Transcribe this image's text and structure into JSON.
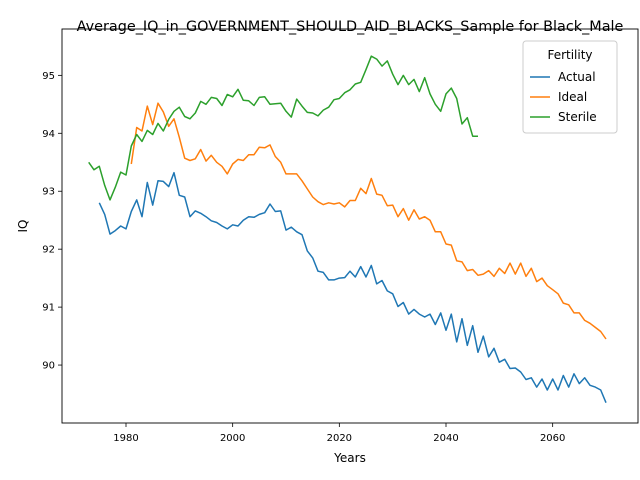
{
  "chart_data": {
    "type": "line",
    "title": "Average_IQ_in_GOVERNMENT_SHOULD_AID_BLACKS_Sample for Black_Male",
    "xlabel": "Years",
    "ylabel": "IQ",
    "xlim": [
      1968,
      2076
    ],
    "ylim": [
      89.0,
      95.8
    ],
    "x_ticks": [
      1980,
      2000,
      2020,
      2040,
      2060
    ],
    "y_ticks": [
      90,
      91,
      92,
      93,
      94,
      95
    ],
    "grid": false,
    "legend": {
      "title": "Fertility",
      "placement": "top-right"
    },
    "series": [
      {
        "name": "Actual",
        "color": "#1f77b4",
        "x": [
          1975,
          1976,
          1977,
          1978,
          1979,
          1980,
          1981,
          1982,
          1983,
          1984,
          1985,
          1986,
          1987,
          1988,
          1989,
          1990,
          1991,
          1992,
          1993,
          1994,
          1995,
          1996,
          1997,
          1998,
          1999,
          2000,
          2001,
          2002,
          2003,
          2004,
          2005,
          2006,
          2007,
          2008,
          2009,
          2010,
          2011,
          2012,
          2013,
          2014,
          2015,
          2016,
          2017,
          2018,
          2019,
          2020,
          2021,
          2022,
          2023,
          2024,
          2025,
          2026,
          2027,
          2028,
          2029,
          2030,
          2031,
          2032,
          2033,
          2034,
          2035,
          2036,
          2037,
          2038,
          2039,
          2040,
          2041,
          2042,
          2043,
          2044,
          2045,
          2046,
          2047,
          2048,
          2049,
          2050,
          2051,
          2052,
          2053,
          2054,
          2055,
          2056,
          2057,
          2058,
          2059,
          2060,
          2061,
          2062,
          2063,
          2064,
          2065,
          2066,
          2067,
          2068,
          2069,
          2070
        ],
        "values": [
          92.8,
          92.6,
          92.26,
          92.32,
          92.4,
          92.35,
          92.65,
          92.85,
          92.56,
          93.15,
          92.76,
          93.18,
          93.17,
          93.08,
          93.32,
          92.93,
          92.9,
          92.56,
          92.66,
          92.62,
          92.56,
          92.49,
          92.46,
          92.4,
          92.35,
          92.42,
          92.4,
          92.5,
          92.56,
          92.55,
          92.6,
          92.63,
          92.78,
          92.65,
          92.66,
          92.33,
          92.38,
          92.3,
          92.25,
          91.97,
          91.85,
          91.62,
          91.6,
          91.47,
          91.47,
          91.5,
          91.51,
          91.62,
          91.52,
          91.7,
          91.52,
          91.72,
          91.4,
          91.46,
          91.28,
          91.23,
          91.01,
          91.08,
          90.88,
          90.96,
          90.88,
          90.83,
          90.88,
          90.7,
          90.9,
          90.6,
          90.88,
          90.4,
          90.8,
          90.34,
          90.68,
          90.22,
          90.5,
          90.14,
          90.29,
          90.05,
          90.1,
          89.94,
          89.95,
          89.88,
          89.75,
          89.78,
          89.62,
          89.76,
          89.57,
          89.76,
          89.57,
          89.82,
          89.62,
          89.85,
          89.68,
          89.78,
          89.65,
          89.62,
          89.57,
          89.35
        ]
      },
      {
        "name": "Ideal",
        "color": "#ff7f0e",
        "x": [
          1981,
          1982,
          1983,
          1984,
          1985,
          1986,
          1987,
          1988,
          1989,
          1990,
          1991,
          1992,
          1993,
          1994,
          1995,
          1996,
          1997,
          1998,
          1999,
          2000,
          2001,
          2002,
          2003,
          2004,
          2005,
          2006,
          2007,
          2008,
          2009,
          2010,
          2011,
          2012,
          2013,
          2014,
          2015,
          2016,
          2017,
          2018,
          2019,
          2020,
          2021,
          2022,
          2023,
          2024,
          2025,
          2026,
          2027,
          2028,
          2029,
          2030,
          2031,
          2032,
          2033,
          2034,
          2035,
          2036,
          2037,
          2038,
          2039,
          2040,
          2041,
          2042,
          2043,
          2044,
          2045,
          2046,
          2047,
          2048,
          2049,
          2050,
          2051,
          2052,
          2053,
          2054,
          2055,
          2056,
          2057,
          2058,
          2059,
          2060,
          2061,
          2062,
          2063,
          2064,
          2065,
          2066,
          2067,
          2068,
          2069,
          2070
        ],
        "values": [
          93.47,
          94.1,
          94.04,
          94.47,
          94.15,
          94.52,
          94.37,
          94.12,
          94.25,
          93.93,
          93.57,
          93.53,
          93.56,
          93.72,
          93.52,
          93.62,
          93.5,
          93.43,
          93.3,
          93.47,
          93.55,
          93.53,
          93.63,
          93.63,
          93.76,
          93.75,
          93.8,
          93.6,
          93.5,
          93.3,
          93.3,
          93.3,
          93.18,
          93.04,
          92.9,
          92.82,
          92.77,
          92.8,
          92.78,
          92.8,
          92.73,
          92.84,
          92.84,
          93.05,
          92.96,
          93.22,
          92.95,
          92.93,
          92.75,
          92.76,
          92.56,
          92.7,
          92.5,
          92.68,
          92.52,
          92.56,
          92.5,
          92.3,
          92.3,
          92.09,
          92.07,
          91.8,
          91.78,
          91.63,
          91.65,
          91.55,
          91.57,
          91.63,
          91.53,
          91.67,
          91.58,
          91.76,
          91.57,
          91.76,
          91.53,
          91.67,
          91.44,
          91.5,
          91.37,
          91.3,
          91.23,
          91.07,
          91.04,
          90.9,
          90.9,
          90.77,
          90.72,
          90.65,
          90.58,
          90.45
        ]
      },
      {
        "name": "Sterile",
        "color": "#2ca02c",
        "x": [
          1973,
          1974,
          1975,
          1976,
          1977,
          1978,
          1979,
          1980,
          1981,
          1982,
          1983,
          1984,
          1985,
          1986,
          1987,
          1988,
          1989,
          1990,
          1991,
          1992,
          1993,
          1994,
          1995,
          1996,
          1997,
          1998,
          1999,
          2000,
          2001,
          2002,
          2003,
          2004,
          2005,
          2006,
          2007,
          2008,
          2009,
          2010,
          2011,
          2012,
          2013,
          2014,
          2015,
          2016,
          2017,
          2018,
          2019,
          2020,
          2021,
          2022,
          2023,
          2024,
          2025,
          2026,
          2027,
          2028,
          2029,
          2030,
          2031,
          2032,
          2033,
          2034,
          2035,
          2036,
          2037,
          2038,
          2039,
          2040,
          2041,
          2042,
          2043,
          2044,
          2045,
          2046
        ],
        "values": [
          93.5,
          93.37,
          93.43,
          93.1,
          92.85,
          93.07,
          93.33,
          93.28,
          93.78,
          93.98,
          93.86,
          94.05,
          93.98,
          94.17,
          94.04,
          94.24,
          94.38,
          94.45,
          94.29,
          94.25,
          94.35,
          94.55,
          94.5,
          94.62,
          94.6,
          94.48,
          94.67,
          94.63,
          94.76,
          94.57,
          94.56,
          94.48,
          94.62,
          94.63,
          94.5,
          94.51,
          94.52,
          94.38,
          94.28,
          94.59,
          94.47,
          94.36,
          94.35,
          94.3,
          94.4,
          94.45,
          94.58,
          94.6,
          94.7,
          94.75,
          94.85,
          94.88,
          95.1,
          95.33,
          95.28,
          95.16,
          95.25,
          95.02,
          94.84,
          95.0,
          94.84,
          94.93,
          94.72,
          94.96,
          94.68,
          94.5,
          94.38,
          94.68,
          94.78,
          94.6,
          94.16,
          94.27,
          93.95,
          93.95
        ]
      }
    ]
  }
}
